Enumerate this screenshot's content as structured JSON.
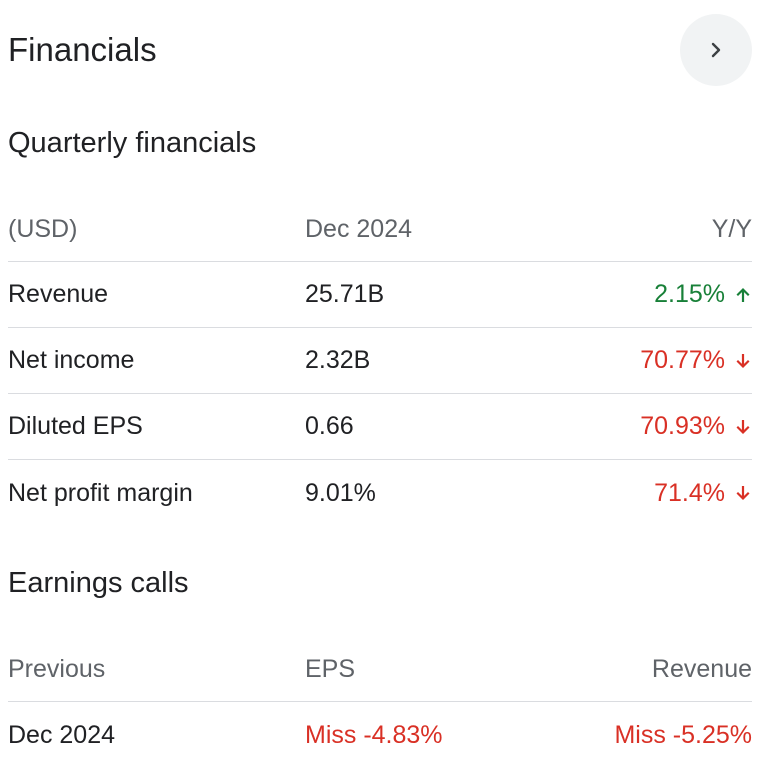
{
  "header": {
    "title": "Financials",
    "next_icon": "chevron-right-icon"
  },
  "quarterly": {
    "title": "Quarterly financials",
    "columns": [
      "(USD)",
      "Dec 2024",
      "Y/Y"
    ],
    "rows": [
      {
        "label": "Revenue",
        "value": "25.71B",
        "change": "2.15%",
        "direction": "up"
      },
      {
        "label": "Net income",
        "value": "2.32B",
        "change": "70.77%",
        "direction": "down"
      },
      {
        "label": "Diluted EPS",
        "value": "0.66",
        "change": "70.93%",
        "direction": "down"
      },
      {
        "label": "Net profit margin",
        "value": "9.01%",
        "change": "71.4%",
        "direction": "down"
      }
    ]
  },
  "earnings": {
    "title": "Earnings calls",
    "columns": [
      "Previous",
      "EPS",
      "Revenue"
    ],
    "rows": [
      {
        "period": "Dec 2024",
        "eps": "Miss -4.83%",
        "revenue": "Miss -5.25%"
      }
    ]
  },
  "colors": {
    "positive": "#188038",
    "negative": "#d93025",
    "muted": "#5f6368",
    "divider": "#dadce0",
    "button_bg": "#f1f3f4"
  }
}
